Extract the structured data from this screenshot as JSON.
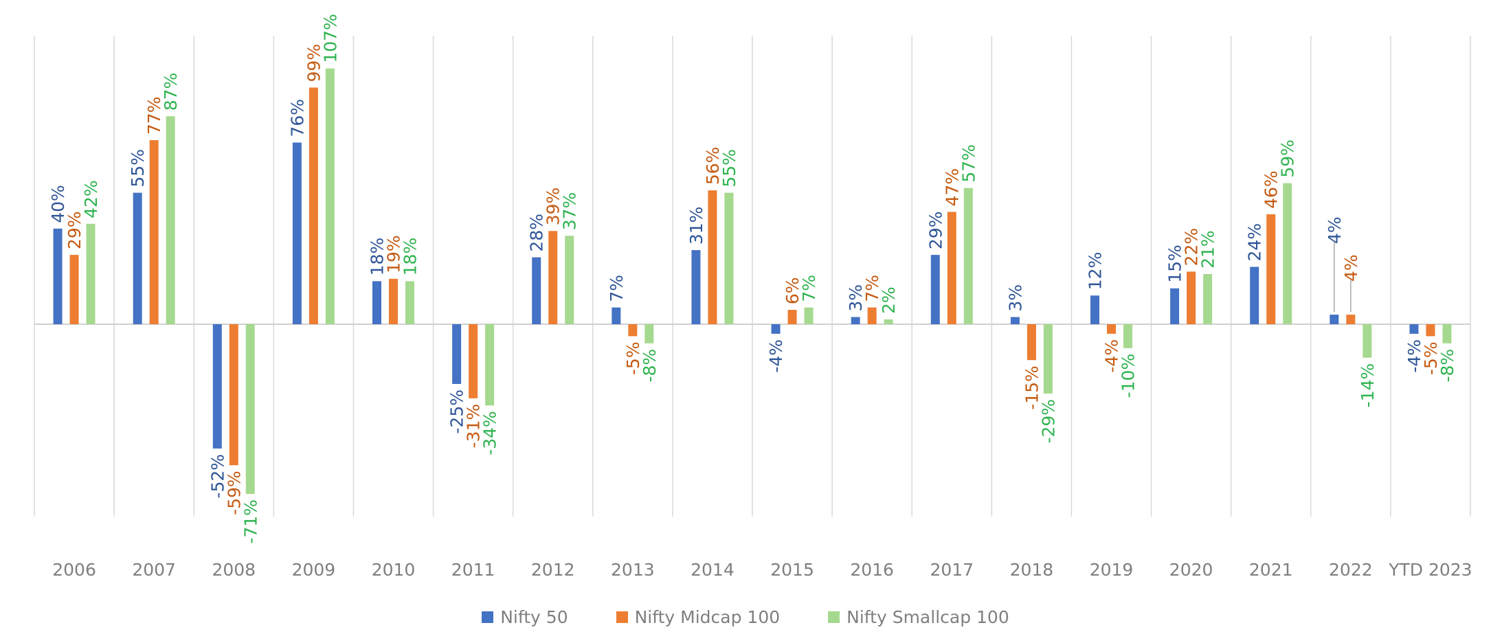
{
  "chart_data": {
    "type": "bar",
    "categories": [
      "2006",
      "2007",
      "2008",
      "2009",
      "2010",
      "2011",
      "2012",
      "2013",
      "2014",
      "2015",
      "2016",
      "2017",
      "2018",
      "2019",
      "2020",
      "2021",
      "2022",
      "YTD 2023"
    ],
    "series": [
      {
        "name": "Nifty 50",
        "color": "#4472c4",
        "values": [
          40,
          55,
          -52,
          76,
          18,
          -25,
          28,
          7,
          31,
          -4,
          3,
          29,
          3,
          12,
          15,
          24,
          4,
          -4
        ]
      },
      {
        "name": "Nifty Midcap 100",
        "color": "#ed7d31",
        "values": [
          29,
          77,
          -59,
          99,
          19,
          -31,
          39,
          -5,
          56,
          6,
          7,
          47,
          -15,
          -4,
          22,
          46,
          4,
          -5
        ]
      },
      {
        "name": "Nifty Smallcap 100",
        "color": "#a5d98f",
        "values": [
          42,
          87,
          -71,
          107,
          18,
          -34,
          37,
          -8,
          55,
          7,
          2,
          57,
          -29,
          -10,
          21,
          59,
          -14,
          -8
        ]
      }
    ],
    "label_colors": [
      "#2e5597",
      "#c55a11",
      "#2fb34f"
    ],
    "label_suffix": "%",
    "ylim": [
      -80,
      120
    ],
    "grid": "vertical category separators",
    "legend": "bottom-center"
  }
}
